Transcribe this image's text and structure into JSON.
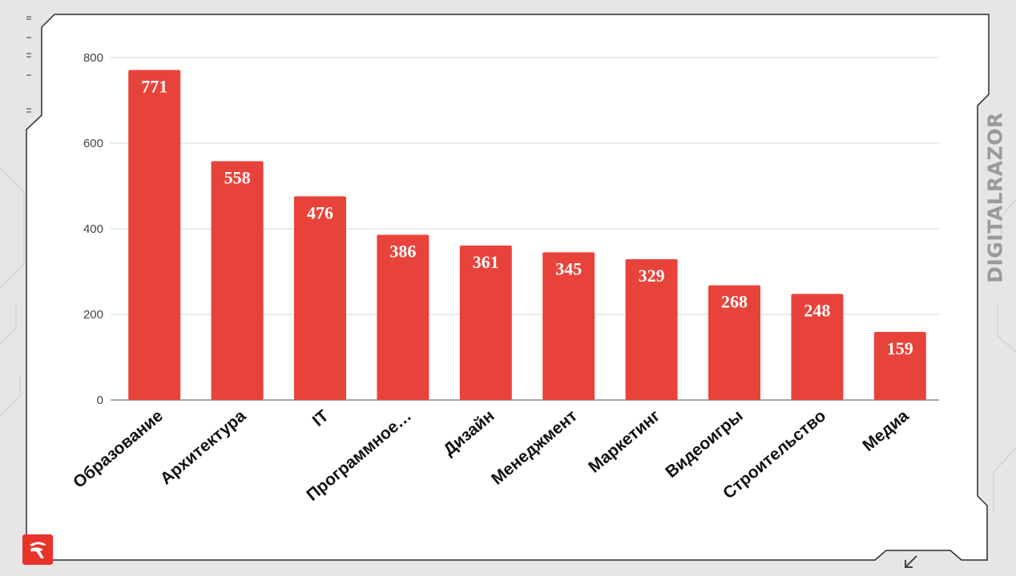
{
  "brand": {
    "name": "DIGITALRAZOR"
  },
  "icons": {
    "logo": "razor-logo-icon",
    "corner": "arrow-down-left-icon"
  },
  "colors": {
    "bar": "#e8433a",
    "accent": "#e8322a",
    "grid": "#d6d6d6",
    "axis": "#888888"
  },
  "chart_data": {
    "type": "bar",
    "categories": [
      "Образование",
      "Архитектура",
      "IT",
      "Программное…",
      "Дизайн",
      "Менеджмент",
      "Маркетинг",
      "Видеоигры",
      "Строительство",
      "Медиа"
    ],
    "values": [
      771,
      558,
      476,
      386,
      361,
      345,
      329,
      268,
      248,
      159
    ],
    "data_labels": [
      "771",
      "558",
      "476",
      "386",
      "361",
      "345",
      "329",
      "268",
      "248",
      "159"
    ],
    "y_ticks": [
      0,
      200,
      400,
      600,
      800
    ],
    "y_tick_labels": [
      "0",
      "200",
      "400",
      "600",
      "800"
    ],
    "ylim": [
      0,
      800
    ],
    "grid": true,
    "legend": "none"
  }
}
